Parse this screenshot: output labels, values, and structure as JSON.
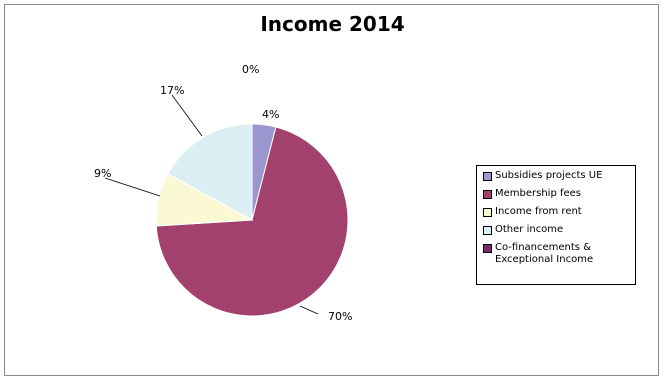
{
  "chart_data": {
    "type": "pie",
    "title": "Income 2014",
    "slices": [
      {
        "name": "Subsidies projects UE",
        "value": 4,
        "label": "4%",
        "color": "#9b96d0"
      },
      {
        "name": "Membership fees",
        "value": 70,
        "label": "70%",
        "color": "#a3416e"
      },
      {
        "name": "Income from rent",
        "value": 9,
        "label": "9%",
        "color": "#fbf9d3"
      },
      {
        "name": "Other income",
        "value": 17,
        "label": "17%",
        "color": "#daeef3"
      },
      {
        "name": "Co-financements &\nExceptional Income",
        "value": 0,
        "label": "0%",
        "color": "#7a2a6a"
      }
    ],
    "legend_position": "right"
  }
}
